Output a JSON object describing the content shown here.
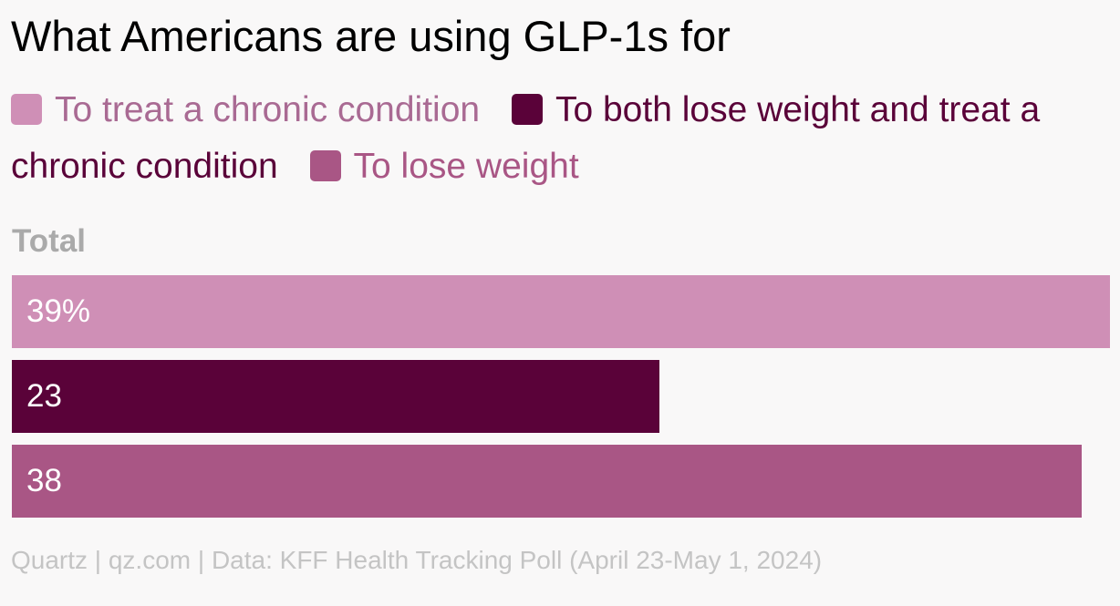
{
  "chart_data": {
    "type": "bar",
    "orientation": "horizontal",
    "title": "What Americans are using GLP-1s for",
    "categories": [
      "Total"
    ],
    "series": [
      {
        "name": "To treat a chronic condition",
        "values": [
          39
        ],
        "label": "39%",
        "color": "#cf8fb6"
      },
      {
        "name": "To both lose weight and treat a chronic condition",
        "values": [
          23
        ],
        "label": "23",
        "color": "#5a0239"
      },
      {
        "name": "To lose weight",
        "values": [
          38
        ],
        "label": "38",
        "color": "#a95685"
      }
    ],
    "legend_text_colors": [
      "#a96a93",
      "#5a0239",
      "#a95685"
    ],
    "xlim": [
      0,
      39
    ],
    "grid": false,
    "legend_position": "top",
    "source": "Quartz | qz.com | Data: KFF Health Tracking Poll (April 23-May 1, 2024)"
  }
}
